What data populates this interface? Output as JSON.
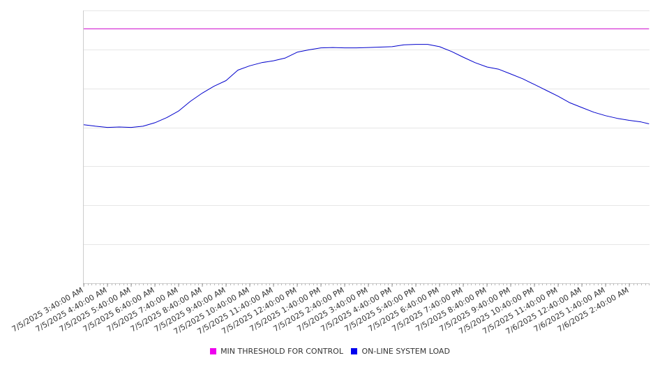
{
  "chart_data": {
    "type": "line",
    "x_tick_labels": [
      "7/5/2025 3:40:00 AM",
      "7/5/2025 4:40:00 AM",
      "7/5/2025 5:40:00 AM",
      "7/5/2025 6:40:00 AM",
      "7/5/2025 7:40:00 AM",
      "7/5/2025 8:40:00 AM",
      "7/5/2025 9:40:00 AM",
      "7/5/2025 10:40:00 AM",
      "7/5/2025 11:40:00 AM",
      "7/5/2025 12:40:00 PM",
      "7/5/2025 1:40:00 PM",
      "7/5/2025 2:40:00 PM",
      "7/5/2025 3:40:00 PM",
      "7/5/2025 4:40:00 PM",
      "7/5/2025 5:40:00 PM",
      "7/5/2025 6:40:00 PM",
      "7/5/2025 7:40:00 PM",
      "7/5/2025 8:40:00 PM",
      "7/5/2025 9:40:00 PM",
      "7/5/2025 10:40:00 PM",
      "7/5/2025 11:40:00 PM",
      "7/6/2025 12:40:00 AM",
      "7/6/2025 1:40:00 AM",
      "7/6/2025 2:40:00 AM"
    ],
    "grid": true,
    "legend_position": "bottom-center",
    "series": [
      {
        "name": "MIN THRESHOLD FOR CONTROL",
        "color": "#CC00CC",
        "x": [
          "7/5/2025 3:40:00 AM",
          "7/6/2025 3:30:00 AM"
        ],
        "y": [
          6.53,
          6.53
        ]
      },
      {
        "name": "ON-LINE SYSTEM LOAD",
        "color": "#0000CC",
        "x": [
          "7/5/2025 3:40:00 AM",
          "7/5/2025 4:10:00 AM",
          "7/5/2025 4:40:00 AM",
          "7/5/2025 5:10:00 AM",
          "7/5/2025 5:40:00 AM",
          "7/5/2025 6:10:00 AM",
          "7/5/2025 6:40:00 AM",
          "7/5/2025 7:10:00 AM",
          "7/5/2025 7:40:00 AM",
          "7/5/2025 8:10:00 AM",
          "7/5/2025 8:40:00 AM",
          "7/5/2025 9:10:00 AM",
          "7/5/2025 9:40:00 AM",
          "7/5/2025 10:10:00 AM",
          "7/5/2025 10:40:00 AM",
          "7/5/2025 11:10:00 AM",
          "7/5/2025 11:40:00 AM",
          "7/5/2025 12:10:00 PM",
          "7/5/2025 12:40:00 PM",
          "7/5/2025 1:10:00 PM",
          "7/5/2025 1:40:00 PM",
          "7/5/2025 2:10:00 PM",
          "7/5/2025 2:40:00 PM",
          "7/5/2025 3:10:00 PM",
          "7/5/2025 3:40:00 PM",
          "7/5/2025 4:10:00 PM",
          "7/5/2025 4:40:00 PM",
          "7/5/2025 5:10:00 PM",
          "7/5/2025 5:40:00 PM",
          "7/5/2025 6:10:00 PM",
          "7/5/2025 6:40:00 PM",
          "7/5/2025 7:10:00 PM",
          "7/5/2025 7:40:00 PM",
          "7/5/2025 8:10:00 PM",
          "7/5/2025 8:40:00 PM",
          "7/5/2025 9:10:00 PM",
          "7/5/2025 9:40:00 PM",
          "7/5/2025 10:10:00 PM",
          "7/5/2025 10:40:00 PM",
          "7/5/2025 11:10:00 PM",
          "7/5/2025 11:40:00 PM",
          "7/6/2025 12:10:00 AM",
          "7/6/2025 12:40:00 AM",
          "7/6/2025 1:10:00 AM",
          "7/6/2025 1:40:00 AM",
          "7/6/2025 2:10:00 AM",
          "7/6/2025 2:40:00 AM",
          "7/6/2025 3:10:00 AM",
          "7/6/2025 3:30:00 AM"
        ],
        "y": [
          4.07,
          4.03,
          4.0,
          4.01,
          4.0,
          4.03,
          4.12,
          4.25,
          4.42,
          4.67,
          4.88,
          5.06,
          5.2,
          5.47,
          5.58,
          5.66,
          5.71,
          5.78,
          5.93,
          5.99,
          6.04,
          6.05,
          6.04,
          6.04,
          6.05,
          6.06,
          6.07,
          6.12,
          6.13,
          6.13,
          6.07,
          5.95,
          5.8,
          5.66,
          5.55,
          5.49,
          5.37,
          5.25,
          5.1,
          4.95,
          4.8,
          4.63,
          4.51,
          4.39,
          4.3,
          4.23,
          4.18,
          4.14,
          4.09
        ]
      }
    ]
  }
}
